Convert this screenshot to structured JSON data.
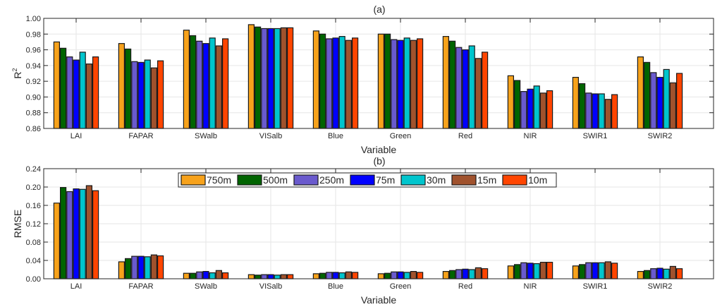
{
  "chart_data": [
    {
      "type": "bar",
      "title": "(a)",
      "xlabel": "Variable",
      "ylabel": "R2",
      "ylim": [
        0.86,
        1.0
      ],
      "yticks": [
        "0.86",
        "0.88",
        "0.90",
        "0.92",
        "0.94",
        "0.96",
        "0.98",
        "1.00"
      ],
      "grid": true,
      "categories": [
        "LAI",
        "FAPAR",
        "SWalb",
        "VISalb",
        "Blue",
        "Green",
        "Red",
        "NIR",
        "SWIR1",
        "SWIR2"
      ],
      "series": [
        {
          "name": "750m",
          "color": "#f7a21b",
          "values": [
            0.97,
            0.968,
            0.985,
            0.992,
            0.984,
            0.98,
            0.977,
            0.927,
            0.925,
            0.951
          ]
        },
        {
          "name": "500m",
          "color": "#006400",
          "values": [
            0.962,
            0.961,
            0.978,
            0.989,
            0.98,
            0.98,
            0.971,
            0.921,
            0.917,
            0.944
          ]
        },
        {
          "name": "250m",
          "color": "#6a5acd",
          "values": [
            0.951,
            0.945,
            0.971,
            0.987,
            0.974,
            0.973,
            0.963,
            0.907,
            0.905,
            0.931
          ]
        },
        {
          "name": "75m",
          "color": "#0000ff",
          "values": [
            0.947,
            0.944,
            0.968,
            0.987,
            0.975,
            0.972,
            0.96,
            0.91,
            0.904,
            0.925
          ]
        },
        {
          "name": "30m",
          "color": "#00c5cd",
          "values": [
            0.957,
            0.947,
            0.975,
            0.987,
            0.977,
            0.975,
            0.965,
            0.914,
            0.904,
            0.935
          ]
        },
        {
          "name": "15m",
          "color": "#a0522d",
          "values": [
            0.942,
            0.937,
            0.965,
            0.988,
            0.972,
            0.972,
            0.949,
            0.905,
            0.897,
            0.918
          ]
        },
        {
          "name": "10m",
          "color": "#ff4500",
          "values": [
            0.951,
            0.946,
            0.974,
            0.988,
            0.975,
            0.974,
            0.957,
            0.908,
            0.903,
            0.93
          ]
        }
      ]
    },
    {
      "type": "bar",
      "title": "(b)",
      "xlabel": "Variable",
      "ylabel": "RMSE",
      "ylim": [
        0,
        0.24
      ],
      "yticks": [
        "0.00",
        "0.04",
        "0.08",
        "0.12",
        "0.16",
        "0.20",
        "0.24"
      ],
      "grid": true,
      "legend": "top-center",
      "categories": [
        "LAI",
        "FAPAR",
        "SWalb",
        "VISalb",
        "Blue",
        "Green",
        "Red",
        "NIR",
        "SWIR1",
        "SWIR2"
      ],
      "series": [
        {
          "name": "750m",
          "color": "#f7a21b",
          "values": [
            0.165,
            0.037,
            0.012,
            0.009,
            0.011,
            0.011,
            0.016,
            0.028,
            0.028,
            0.016
          ]
        },
        {
          "name": "500m",
          "color": "#006400",
          "values": [
            0.199,
            0.044,
            0.012,
            0.008,
            0.012,
            0.012,
            0.018,
            0.031,
            0.031,
            0.018
          ]
        },
        {
          "name": "250m",
          "color": "#6a5acd",
          "values": [
            0.19,
            0.049,
            0.015,
            0.009,
            0.014,
            0.015,
            0.02,
            0.035,
            0.035,
            0.022
          ]
        },
        {
          "name": "75m",
          "color": "#0000ff",
          "values": [
            0.196,
            0.049,
            0.016,
            0.009,
            0.014,
            0.015,
            0.021,
            0.034,
            0.035,
            0.023
          ]
        },
        {
          "name": "30m",
          "color": "#00c5cd",
          "values": [
            0.195,
            0.048,
            0.013,
            0.008,
            0.013,
            0.014,
            0.02,
            0.033,
            0.035,
            0.021
          ]
        },
        {
          "name": "15m",
          "color": "#a0522d",
          "values": [
            0.203,
            0.052,
            0.018,
            0.009,
            0.015,
            0.016,
            0.024,
            0.036,
            0.037,
            0.027
          ]
        },
        {
          "name": "10m",
          "color": "#ff4500",
          "values": [
            0.192,
            0.05,
            0.013,
            0.009,
            0.014,
            0.014,
            0.022,
            0.036,
            0.034,
            0.022
          ]
        }
      ]
    }
  ]
}
